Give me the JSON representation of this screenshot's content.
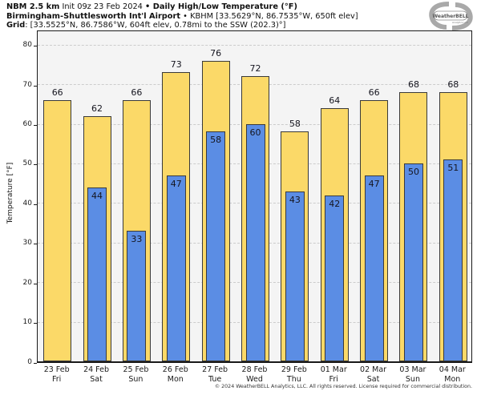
{
  "header": {
    "line1_bold": "NBM 2.5 km",
    "line1_mid": " Init 09z 23 Feb 2024 ",
    "line1_bold2": "• Daily High/Low Temperature (°F)",
    "line2_bold": "Birmingham-Shuttlesworth Int'l Airport",
    "line2_rest": " • KBHM [33.5629°N, 86.7535°W, 650ft elev]",
    "line3_bold": "Grid",
    "line3_rest": ": [33.5525°N, 86.7586°W, 604ft elev, 0.78mi to the SSW (202.3)°]"
  },
  "logo": {
    "name": "WeatherBELL",
    "sub": "Analytics LLC"
  },
  "footer": "© 2024 WeatherBELL Analytics, LLC. All rights reserved. License required for commercial distribution.",
  "chart_data": {
    "type": "bar",
    "title": "NBM 2.5 km Daily High/Low Temperature (°F) — Birmingham-Shuttlesworth Int'l Airport (KBHM)",
    "categories": [
      {
        "date": "23 Feb",
        "day": "Fri"
      },
      {
        "date": "24 Feb",
        "day": "Sat"
      },
      {
        "date": "25 Feb",
        "day": "Sun"
      },
      {
        "date": "26 Feb",
        "day": "Mon"
      },
      {
        "date": "27 Feb",
        "day": "Tue"
      },
      {
        "date": "28 Feb",
        "day": "Wed"
      },
      {
        "date": "29 Feb",
        "day": "Thu"
      },
      {
        "date": "01 Mar",
        "day": "Fri"
      },
      {
        "date": "02 Mar",
        "day": "Sat"
      },
      {
        "date": "03 Mar",
        "day": "Sun"
      },
      {
        "date": "04 Mar",
        "day": "Mon"
      }
    ],
    "series": [
      {
        "name": "High",
        "color": "#fbd968",
        "values": [
          66,
          62,
          66,
          73,
          76,
          72,
          58,
          64,
          66,
          68,
          68
        ]
      },
      {
        "name": "Low",
        "color": "#5b8de4",
        "values": [
          null,
          44,
          33,
          47,
          58,
          60,
          43,
          42,
          47,
          50,
          51
        ]
      }
    ],
    "ylabel": "Temperature [°F]",
    "ylim": [
      0,
      84
    ],
    "yticks": [
      0,
      10,
      20,
      30,
      40,
      50,
      60,
      70,
      80
    ],
    "grid": "horizontal-dashed",
    "legend": "none"
  },
  "colors": {
    "high_bar": "#fbd968",
    "low_bar": "#5b8de4",
    "bar_border": "#3a3a3a",
    "plot_bg": "#f4f4f4",
    "gridline": "#cccccc",
    "axis": "#1a1a1a"
  }
}
